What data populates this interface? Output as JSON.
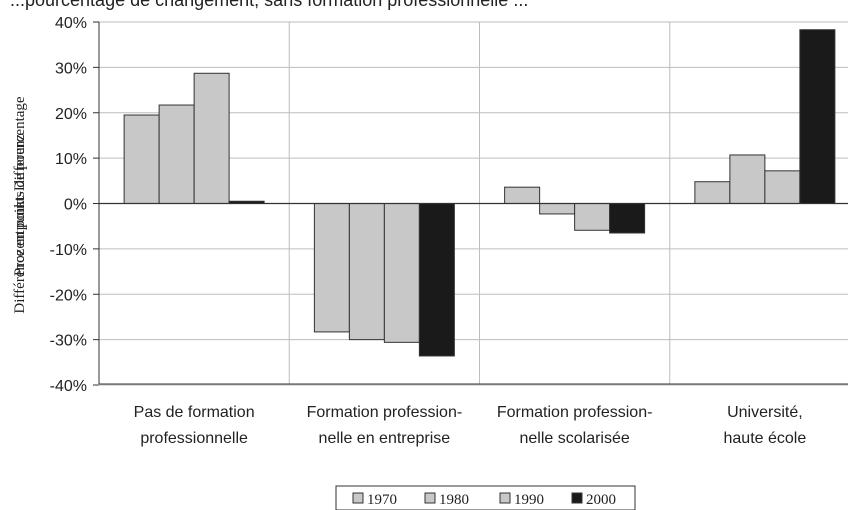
{
  "chart_data": {
    "type": "bar",
    "title": "...pourcentage de changement, sans formation professionnelle ...",
    "ylabel_overlap_1": "Différence en points de pourcentage",
    "ylabel_overlap_2": "Prozentpunkt-Differenz",
    "categories": [
      [
        "Pas de formation",
        "professionnelle"
      ],
      [
        "Formation profession-",
        "nelle en entreprise"
      ],
      [
        "Formation profession-",
        "nelle scolarisée"
      ],
      [
        "Université,",
        "haute école"
      ]
    ],
    "series": [
      {
        "name": "1970",
        "color": "#c8c8c8",
        "values": [
          19.5,
          -28.3,
          3.6,
          4.8
        ]
      },
      {
        "name": "1980",
        "color": "#c8c8c8",
        "values": [
          21.7,
          -30.0,
          -2.3,
          10.7
        ]
      },
      {
        "name": "1990",
        "color": "#c8c8c8",
        "values": [
          28.7,
          -30.6,
          -5.9,
          7.2
        ]
      },
      {
        "name": "2000",
        "color": "#1a1a1a",
        "values": [
          0.5,
          -33.6,
          -6.5,
          38.3
        ]
      }
    ],
    "ylim": [
      -40,
      40
    ],
    "ytick_step": 10,
    "ytick_suffix": "%",
    "grid": "vertical separators between categories and horizontal gridlines",
    "legend_position": "bottom-center"
  }
}
